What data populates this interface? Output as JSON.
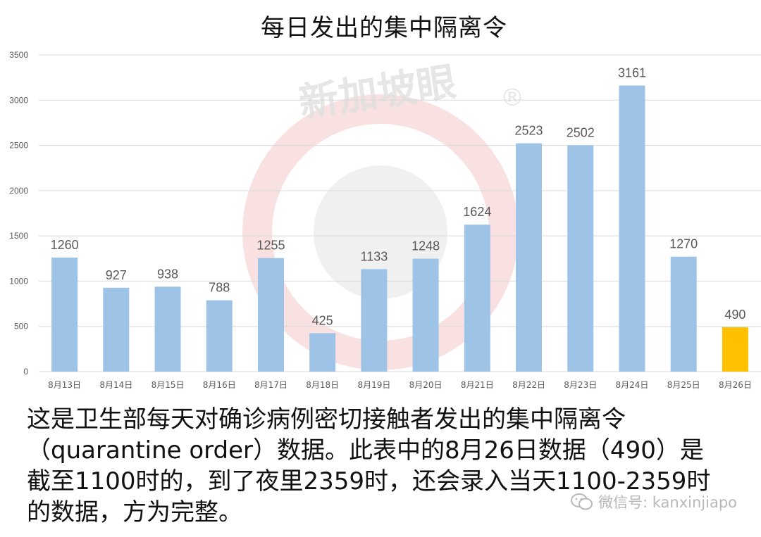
{
  "chart_data": {
    "type": "bar",
    "title": "每日发出的集中隔离令",
    "categories": [
      "8月13日",
      "8月14日",
      "8月15日",
      "8月16日",
      "8月17日",
      "8月18日",
      "8月19日",
      "8月20日",
      "8月21日",
      "8月22日",
      "8月23日",
      "8月24日",
      "8月25日",
      "8月26日"
    ],
    "values": [
      1260,
      927,
      938,
      788,
      1255,
      425,
      1133,
      1248,
      1624,
      2523,
      2502,
      3161,
      1270,
      490
    ],
    "highlight_index": 13,
    "colors": {
      "bar": "#9dc3e6",
      "highlight": "#ffc000",
      "grid": "#d9d9d9",
      "label": "#595959"
    },
    "ylim": [
      0,
      3500
    ],
    "yticks": [
      0,
      500,
      1000,
      1500,
      2000,
      2500,
      3000,
      3500
    ],
    "grid": true,
    "xlabel": "",
    "ylabel": ""
  },
  "caption": {
    "lines": [
      "这是卫生部每天对确诊病例密切接触者发出的集中隔离令",
      "（quarantine order）数据。此表中的8月26日数据（490）是",
      "截至1100时的，到了夜里2359时，还会录入当天1100-2359时",
      "的数据，方为完整。"
    ]
  },
  "watermark": {
    "brand": "新加坡眼",
    "registered": "®",
    "wechat_label": "微信号: kanxinjiapo"
  }
}
